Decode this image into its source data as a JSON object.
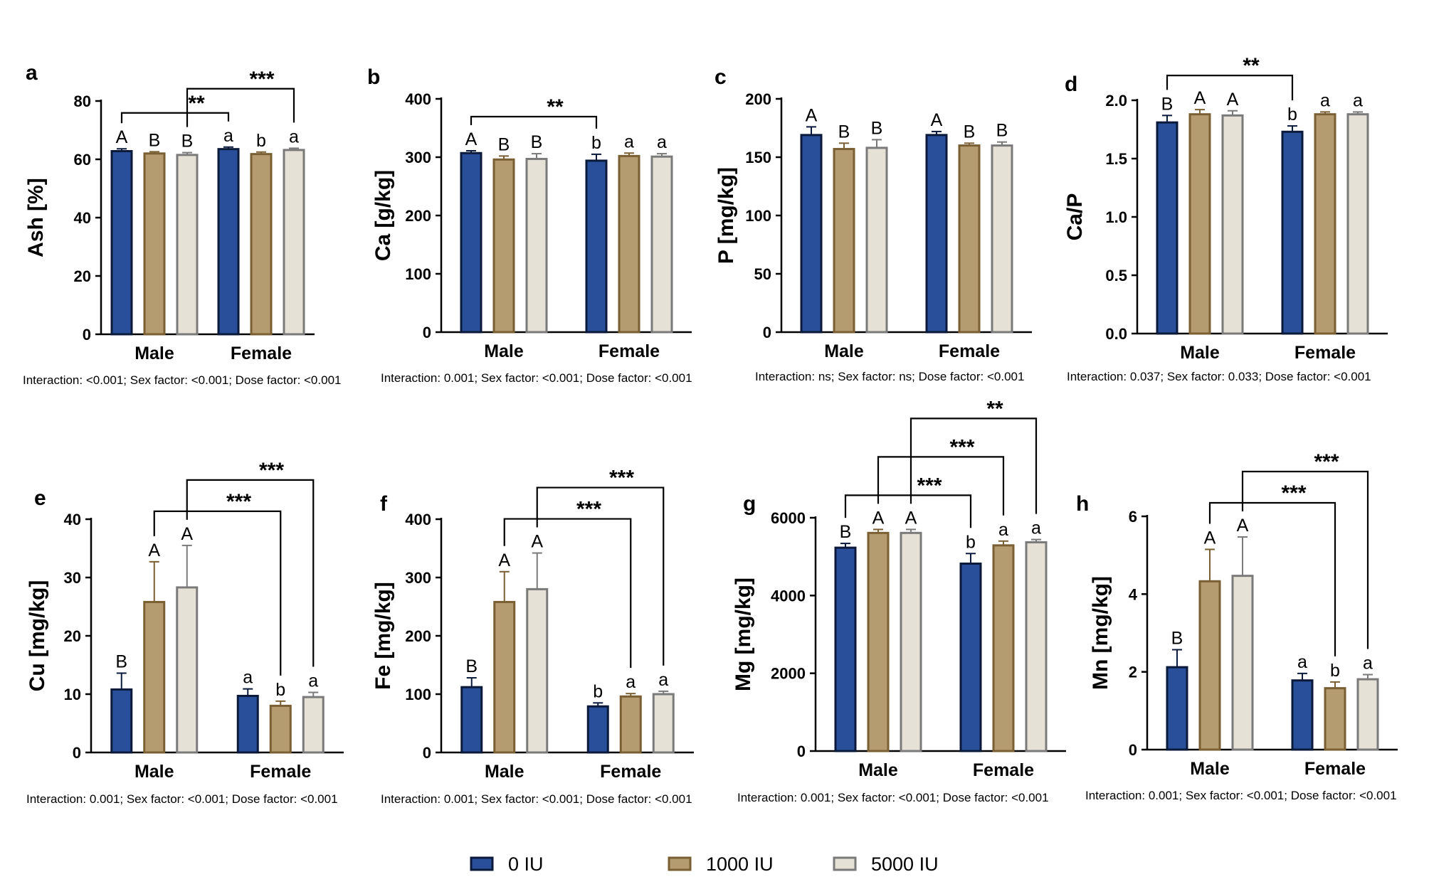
{
  "series": [
    {
      "name": "0 IU",
      "fill": "#2a4f9a",
      "stroke": "#0b1a3a"
    },
    {
      "name": "1000 IU",
      "fill": "#b49c70",
      "stroke": "#7a5f33"
    },
    {
      "name": "5000 IU",
      "fill": "#e6e1d6",
      "stroke": "#7a7a7a"
    }
  ],
  "chart_data": [
    {
      "type": "bar",
      "letter": "a",
      "ylabel": "Ash [%]",
      "categories": [
        "Male",
        "Female"
      ],
      "ylim": [
        0,
        80
      ],
      "yticks": [
        "0",
        "20",
        "40",
        "60",
        "80"
      ],
      "values": [
        [
          62.8,
          62.0,
          61.5
        ],
        [
          63.5,
          61.8,
          63.2
        ]
      ],
      "errors": [
        [
          0.8,
          0.6,
          0.8
        ],
        [
          0.7,
          0.7,
          0.6
        ]
      ],
      "letters": [
        [
          "A",
          "B",
          "B"
        ],
        [
          "a",
          "b",
          "a"
        ]
      ],
      "brackets": [
        {
          "from": [
            0,
            0
          ],
          "to": [
            1,
            0
          ],
          "stars": "**"
        },
        {
          "from": [
            0,
            2
          ],
          "to": [
            1,
            2
          ],
          "stars": "***"
        }
      ],
      "stats": "Interaction: <0.001; Sex factor: <0.001; Dose factor: <0.001"
    },
    {
      "type": "bar",
      "letter": "b",
      "ylabel": "Ca [g/kg]",
      "categories": [
        "Male",
        "Female"
      ],
      "ylim": [
        0,
        400
      ],
      "yticks": [
        "0",
        "100",
        "200",
        "300",
        "400"
      ],
      "values": [
        [
          307,
          296,
          297
        ],
        [
          294,
          302,
          301
        ]
      ],
      "errors": [
        [
          4,
          6,
          9
        ],
        [
          11,
          5,
          5
        ]
      ],
      "letters": [
        [
          "A",
          "B",
          "B"
        ],
        [
          "b",
          "a",
          "a"
        ]
      ],
      "brackets": [
        {
          "from": [
            0,
            0
          ],
          "to": [
            1,
            0
          ],
          "stars": "**"
        }
      ],
      "stats": "Interaction: 0.001; Sex factor: <0.001; Dose factor: <0.001"
    },
    {
      "type": "bar",
      "letter": "c",
      "ylabel": "P [mg/kg]",
      "categories": [
        "Male",
        "Female"
      ],
      "ylim": [
        0,
        200
      ],
      "yticks": [
        "0",
        "50",
        "100",
        "150",
        "200"
      ],
      "values": [
        [
          169,
          157,
          158
        ],
        [
          169,
          160,
          160
        ]
      ],
      "errors": [
        [
          7,
          5,
          7
        ],
        [
          3,
          2,
          3
        ]
      ],
      "letters": [
        [
          "A",
          "B",
          "B"
        ],
        [
          "A",
          "B",
          "B"
        ]
      ],
      "brackets": [],
      "stats": "Interaction: ns; Sex factor: ns; Dose factor: <0.001"
    },
    {
      "type": "bar",
      "letter": "d",
      "ylabel": "Ca/P",
      "categories": [
        "Male",
        "Female"
      ],
      "ylim": [
        0,
        2.0
      ],
      "yticks": [
        "0.0",
        "0.5",
        "1.0",
        "1.5",
        "2.0"
      ],
      "values": [
        [
          1.81,
          1.88,
          1.87
        ],
        [
          1.73,
          1.88,
          1.88
        ]
      ],
      "errors": [
        [
          0.06,
          0.04,
          0.04
        ],
        [
          0.05,
          0.02,
          0.02
        ]
      ],
      "letters": [
        [
          "B",
          "A",
          "A"
        ],
        [
          "b",
          "a",
          "a"
        ]
      ],
      "brackets": [
        {
          "from": [
            0,
            0
          ],
          "to": [
            1,
            0
          ],
          "stars": "**"
        }
      ],
      "stats": "Interaction: 0.037; Sex factor: 0.033; Dose factor: <0.001"
    },
    {
      "type": "bar",
      "letter": "e",
      "ylabel": "Cu [mg/kg]",
      "categories": [
        "Male",
        "Female"
      ],
      "ylim": [
        0,
        40
      ],
      "yticks": [
        "0",
        "10",
        "20",
        "30",
        "40"
      ],
      "values": [
        [
          10.8,
          25.8,
          28.3
        ],
        [
          9.7,
          8.0,
          9.5
        ]
      ],
      "errors": [
        [
          2.8,
          6.9,
          7.2
        ],
        [
          1.2,
          0.8,
          0.8
        ]
      ],
      "letters": [
        [
          "B",
          "A",
          "A"
        ],
        [
          "a",
          "b",
          "a"
        ]
      ],
      "brackets": [
        {
          "from": [
            0,
            1
          ],
          "to": [
            1,
            1
          ],
          "stars": "***"
        },
        {
          "from": [
            0,
            2
          ],
          "to": [
            1,
            2
          ],
          "stars": "***"
        }
      ],
      "stats": "Interaction: 0.001; Sex factor: <0.001; Dose factor: <0.001"
    },
    {
      "type": "bar",
      "letter": "f",
      "ylabel": "Fe [mg/kg]",
      "categories": [
        "Male",
        "Female"
      ],
      "ylim": [
        0,
        400
      ],
      "yticks": [
        "0",
        "100",
        "200",
        "300",
        "400"
      ],
      "values": [
        [
          112,
          258,
          280
        ],
        [
          79,
          96,
          100
        ]
      ],
      "errors": [
        [
          16,
          52,
          62
        ],
        [
          6,
          5,
          5
        ]
      ],
      "letters": [
        [
          "B",
          "A",
          "A"
        ],
        [
          "b",
          "a",
          "a"
        ]
      ],
      "brackets": [
        {
          "from": [
            0,
            1
          ],
          "to": [
            1,
            1
          ],
          "stars": "***"
        },
        {
          "from": [
            0,
            2
          ],
          "to": [
            1,
            2
          ],
          "stars": "***"
        }
      ],
      "stats": "Interaction: 0.001; Sex factor: <0.001; Dose factor: <0.001"
    },
    {
      "type": "bar",
      "letter": "g",
      "ylabel": "Mg [mg/kg]",
      "categories": [
        "Male",
        "Female"
      ],
      "ylim": [
        0,
        6000
      ],
      "yticks": [
        "0",
        "2000",
        "4000",
        "6000"
      ],
      "values": [
        [
          5230,
          5610,
          5610
        ],
        [
          4820,
          5290,
          5370
        ]
      ],
      "errors": [
        [
          110,
          90,
          90
        ],
        [
          260,
          110,
          70
        ]
      ],
      "letters": [
        [
          "B",
          "A",
          "A"
        ],
        [
          "b",
          "a",
          "a"
        ]
      ],
      "brackets": [
        {
          "from": [
            0,
            0
          ],
          "to": [
            1,
            0
          ],
          "stars": "***"
        },
        {
          "from": [
            0,
            1
          ],
          "to": [
            1,
            1
          ],
          "stars": "***"
        },
        {
          "from": [
            0,
            2
          ],
          "to": [
            1,
            2
          ],
          "stars": "**"
        }
      ],
      "stats": "Interaction: 0.001; Sex factor: <0.001; Dose factor: <0.001"
    },
    {
      "type": "bar",
      "letter": "h",
      "ylabel": "Mn [mg/kg]",
      "categories": [
        "Male",
        "Female"
      ],
      "ylim": [
        0,
        6
      ],
      "yticks": [
        "0",
        "2",
        "4",
        "6"
      ],
      "values": [
        [
          2.12,
          4.33,
          4.47
        ],
        [
          1.78,
          1.58,
          1.81
        ]
      ],
      "errors": [
        [
          0.45,
          0.82,
          1.0
        ],
        [
          0.18,
          0.16,
          0.12
        ]
      ],
      "letters": [
        [
          "B",
          "A",
          "A"
        ],
        [
          "a",
          "b",
          "a"
        ]
      ],
      "brackets": [
        {
          "from": [
            0,
            1
          ],
          "to": [
            1,
            1
          ],
          "stars": "***"
        },
        {
          "from": [
            0,
            2
          ],
          "to": [
            1,
            2
          ],
          "stars": "***"
        }
      ],
      "stats": "Interaction: 0.001; Sex factor: <0.001; Dose factor: <0.001"
    }
  ]
}
